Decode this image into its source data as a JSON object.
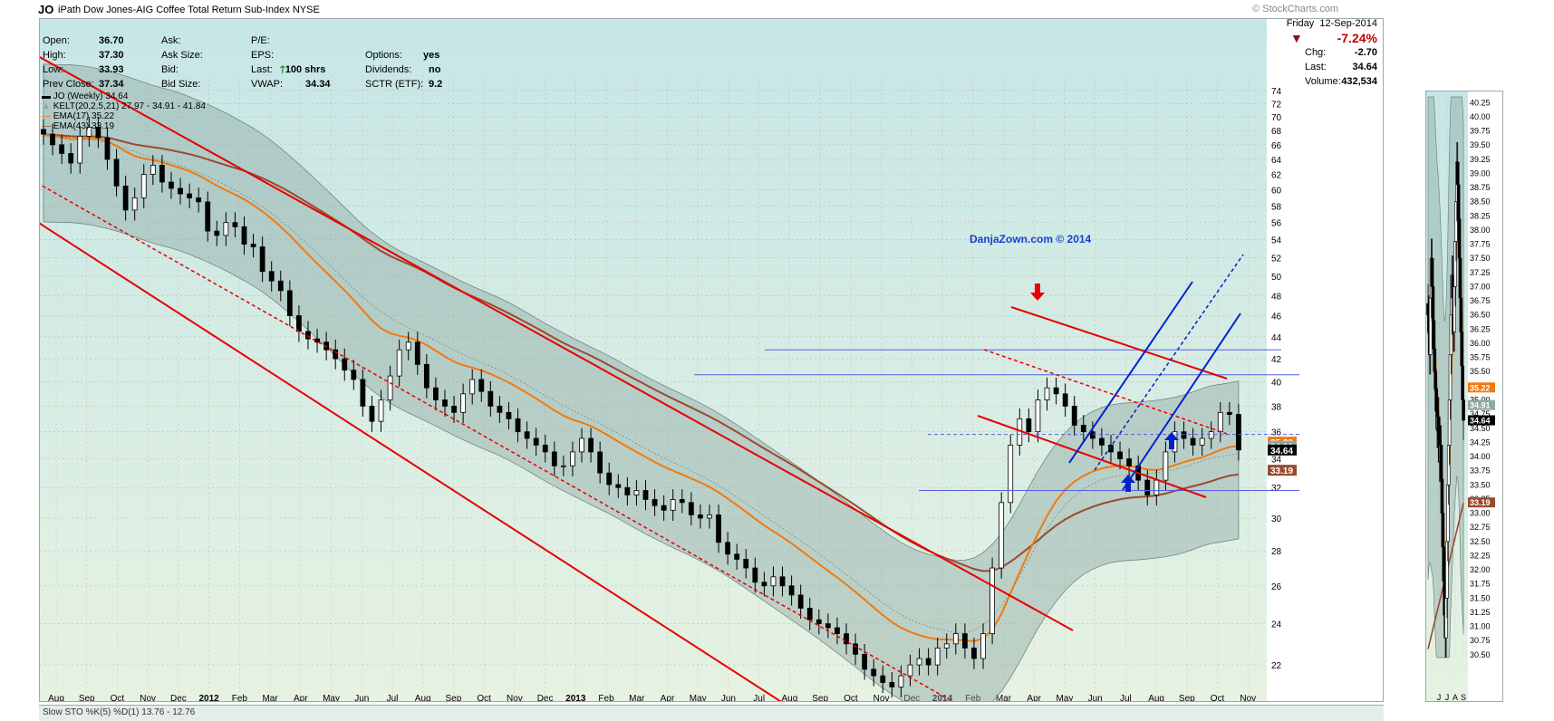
{
  "header": {
    "symbol": "JO",
    "name": "iPath Dow Jones-AIG Coffee Total Return Sub-Index",
    "exchange": "NYSE",
    "brand": "© StockCharts.com"
  },
  "stats": {
    "open_label": "Open:",
    "open": "36.70",
    "high_label": "High:",
    "high": "37.30",
    "low_label": "Low:",
    "low": "33.93",
    "prev_close_label": "Prev Close:",
    "prev_close": "37.34",
    "ask_label": "Ask:",
    "ask": "",
    "ask_size_label": "Ask Size:",
    "ask_size": "",
    "bid_label": "Bid:",
    "bid": "",
    "bid_size_label": "Bid Size:",
    "bid_size": "",
    "pe_label": "P/E:",
    "pe": "",
    "eps_label": "EPS:",
    "eps": "",
    "last_label": "Last:",
    "last_shares": "100 shrs",
    "vwap_label": "VWAP:",
    "vwap": "34.34",
    "options_label": "Options:",
    "options": "yes",
    "dividends_label": "Dividends:",
    "dividends": "no",
    "sctr_label": "SCTR (ETF):",
    "sctr": "9.2"
  },
  "quote": {
    "day": "Friday",
    "date": "12-Sep-2014",
    "pct_change": "-7.24%",
    "chg_label": "Chg:",
    "chg": "-2.70",
    "last_label": "Last:",
    "last": "34.64",
    "volume_label": "Volume:",
    "volume": "432,534"
  },
  "legend": {
    "l1": "JO (Weekly) 34.64",
    "l2": "KELT(20,2.5,21) 27.97 - 34.91 - 41.84",
    "l3": "EMA(17) 35.22",
    "l4": "EMA(43) 33.19"
  },
  "watermark": "DanjaZown.com © 2014",
  "bottom_label": "Slow STO %K(5) %D(1) 13.76 - 12.76",
  "colors": {
    "candle": "#000000",
    "ema17": "#f07a10",
    "ema43": "#9a4a30",
    "kelt_band": "#8fa8a4",
    "trend_red": "#e60000",
    "trend_blue": "#0022cc",
    "bg_top": "#c6e6e6",
    "bg_bottom": "#e6f2e2"
  },
  "chart_data": [
    {
      "type": "candlestick",
      "title": "JO (Weekly)",
      "x_ticks": [
        "Aug",
        "Sep",
        "Oct",
        "Nov",
        "Dec",
        "2012",
        "Feb",
        "Mar",
        "Apr",
        "May",
        "Jun",
        "Jul",
        "Aug",
        "Sep",
        "Oct",
        "Nov",
        "Dec",
        "2013",
        "Feb",
        "Mar",
        "Apr",
        "May",
        "Jun",
        "Jul",
        "Aug",
        "Sep",
        "Oct",
        "Nov",
        "Dec",
        "2014",
        "Feb",
        "Mar",
        "Apr",
        "May",
        "Jun",
        "Jul",
        "Aug",
        "Sep",
        "Oct",
        "Nov"
      ],
      "y_ticks": [
        22,
        24,
        26,
        28,
        30,
        32,
        34,
        36,
        38,
        40,
        42,
        44,
        46,
        48,
        50,
        52,
        54,
        56,
        58,
        60,
        62,
        64,
        66,
        68,
        70,
        72,
        74
      ],
      "y_scale": "log",
      "ylim": [
        20.5,
        75
      ],
      "grid": true,
      "last_price": 34.64,
      "close_series_weekly": [
        67.5,
        66.0,
        64.8,
        63.5,
        67.2,
        68.5,
        67.0,
        64.0,
        60.5,
        57.5,
        59.0,
        62.0,
        63.2,
        61.0,
        60.2,
        59.5,
        59.0,
        58.5,
        55.0,
        54.5,
        56.0,
        55.5,
        53.5,
        53.2,
        50.5,
        49.5,
        48.5,
        46.0,
        44.5,
        43.8,
        43.5,
        42.8,
        42.0,
        41.0,
        40.2,
        38.0,
        36.8,
        38.5,
        40.5,
        42.8,
        43.5,
        41.5,
        39.5,
        38.5,
        38.0,
        37.5,
        39.0,
        40.2,
        39.2,
        38.0,
        37.5,
        37.0,
        36.0,
        35.5,
        35.0,
        34.5,
        33.5,
        33.5,
        34.5,
        35.5,
        34.5,
        33.0,
        32.2,
        32.0,
        31.5,
        31.8,
        31.2,
        30.8,
        30.5,
        31.2,
        31.0,
        30.2,
        30.0,
        30.2,
        28.5,
        27.8,
        27.5,
        27.0,
        26.2,
        26.0,
        26.5,
        26.0,
        25.5,
        24.8,
        24.2,
        24.0,
        23.8,
        23.5,
        23.0,
        22.5,
        21.8,
        21.5,
        21.2,
        21.0,
        21.5,
        22.0,
        22.3,
        22.0,
        22.8,
        23.0,
        23.5,
        22.8,
        22.3,
        23.5,
        27.0,
        31.0,
        35.0,
        37.0,
        36.0,
        38.5,
        39.5,
        39.0,
        38.0,
        36.5,
        36.0,
        35.5,
        35.0,
        34.5,
        34.0,
        33.5,
        32.5,
        31.5,
        32.5,
        34.5,
        36.0,
        35.5,
        35.0,
        35.5,
        36.0,
        37.5,
        37.34,
        34.64
      ],
      "overlays": [
        {
          "name": "KELT(20,2.5,21)",
          "lower": 27.97,
          "middle": 34.91,
          "upper": 41.84
        },
        {
          "name": "EMA(17)",
          "last": 35.22
        },
        {
          "name": "EMA(43)",
          "last": 33.19
        }
      ],
      "price_labels": [
        "35.22",
        "34.91",
        "34.64",
        "33.19"
      ],
      "horizontal_levels": [
        42.8,
        40.6,
        35.8,
        31.8
      ]
    },
    {
      "type": "candlestick",
      "title": "JO (Daily)",
      "x_ticks": [
        "J",
        "J",
        "A",
        "S"
      ],
      "y_ticks": [
        30.5,
        30.75,
        31.0,
        31.25,
        31.5,
        31.75,
        32.0,
        32.25,
        32.5,
        32.75,
        33.0,
        33.25,
        33.5,
        33.75,
        34.0,
        34.25,
        34.5,
        34.75,
        35.0,
        35.25,
        35.5,
        35.75,
        36.0,
        36.25,
        36.5,
        36.75,
        37.0,
        37.25,
        37.5,
        37.75,
        38.0,
        38.25,
        38.5,
        38.75,
        39.0,
        39.25,
        39.5,
        39.75,
        40.0,
        40.25
      ],
      "ylim": [
        30.45,
        40.35
      ],
      "price_labels": [
        "35.22",
        "34.91",
        "34.64",
        "33.19"
      ],
      "close_series_daily": [
        36.5,
        36.2,
        35.8,
        36.8,
        37.5,
        37.0,
        36.4,
        35.9,
        35.5,
        35.2,
        34.8,
        34.5,
        34.7,
        34.3,
        33.9,
        34.2,
        33.6,
        33.0,
        32.4,
        31.8,
        31.2,
        30.8,
        31.5,
        32.5,
        33.5,
        34.2,
        35.0,
        35.8,
        36.5,
        37.2,
        36.8,
        36.2,
        37.0,
        37.8,
        38.5,
        39.2,
        38.8,
        38.2,
        37.5,
        36.8,
        36.2,
        35.6,
        35.0,
        34.64
      ]
    }
  ]
}
